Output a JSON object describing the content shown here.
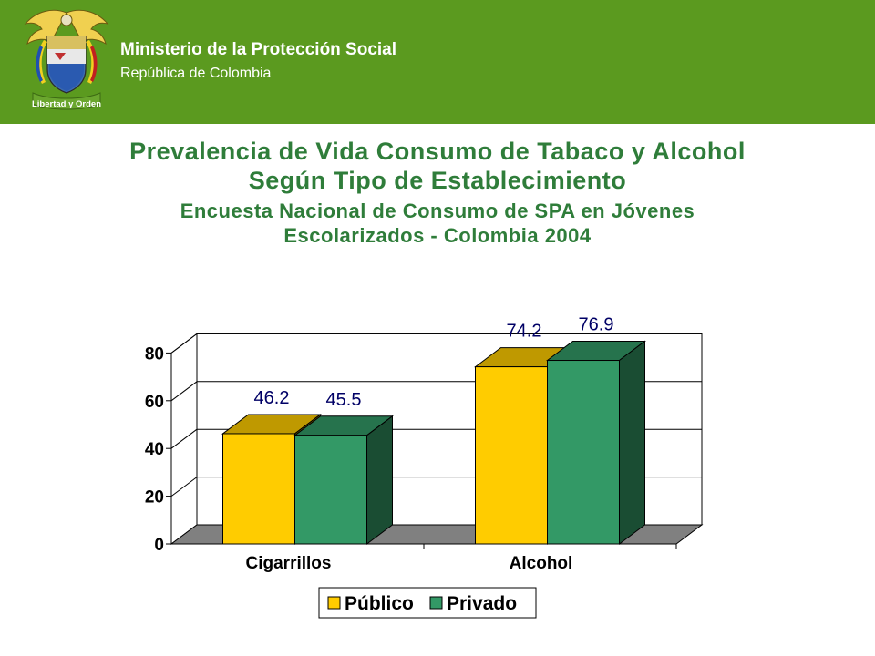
{
  "header": {
    "ministry": "Ministerio de la Protección Social",
    "republic": "República de Colombia",
    "motto": "Libertad y Orden"
  },
  "colors": {
    "header_green": "#5b9a1f",
    "title_green": "#2f7d3a",
    "publico": "#ffcc00",
    "privado": "#339966"
  },
  "chart_data": {
    "type": "bar",
    "title": "Prevalencia de Vida Consumo de Tabaco y Alcohol Según Tipo de Establecimiento",
    "subtitle": "Encuesta Nacional de Consumo de SPA en Jóvenes Escolarizados - Colombia 2004",
    "title_lines": [
      "Prevalencia de Vida Consumo de Tabaco y Alcohol",
      "Según Tipo de Establecimiento"
    ],
    "subtitle_lines": [
      "Encuesta Nacional de Consumo de SPA en Jóvenes",
      "Escolarizados - Colombia 2004"
    ],
    "categories": [
      "Cigarrillos",
      "Alcohol"
    ],
    "series": [
      {
        "name": "Público",
        "values": [
          46.2,
          74.2
        ],
        "color": "#ffcc00"
      },
      {
        "name": "Privado",
        "values": [
          45.5,
          76.9
        ],
        "color": "#339966"
      }
    ],
    "ylim": [
      0,
      80
    ],
    "yticks": [
      0,
      20,
      40,
      60,
      80
    ],
    "grid": true,
    "legend": "bottom",
    "style": "3d"
  }
}
